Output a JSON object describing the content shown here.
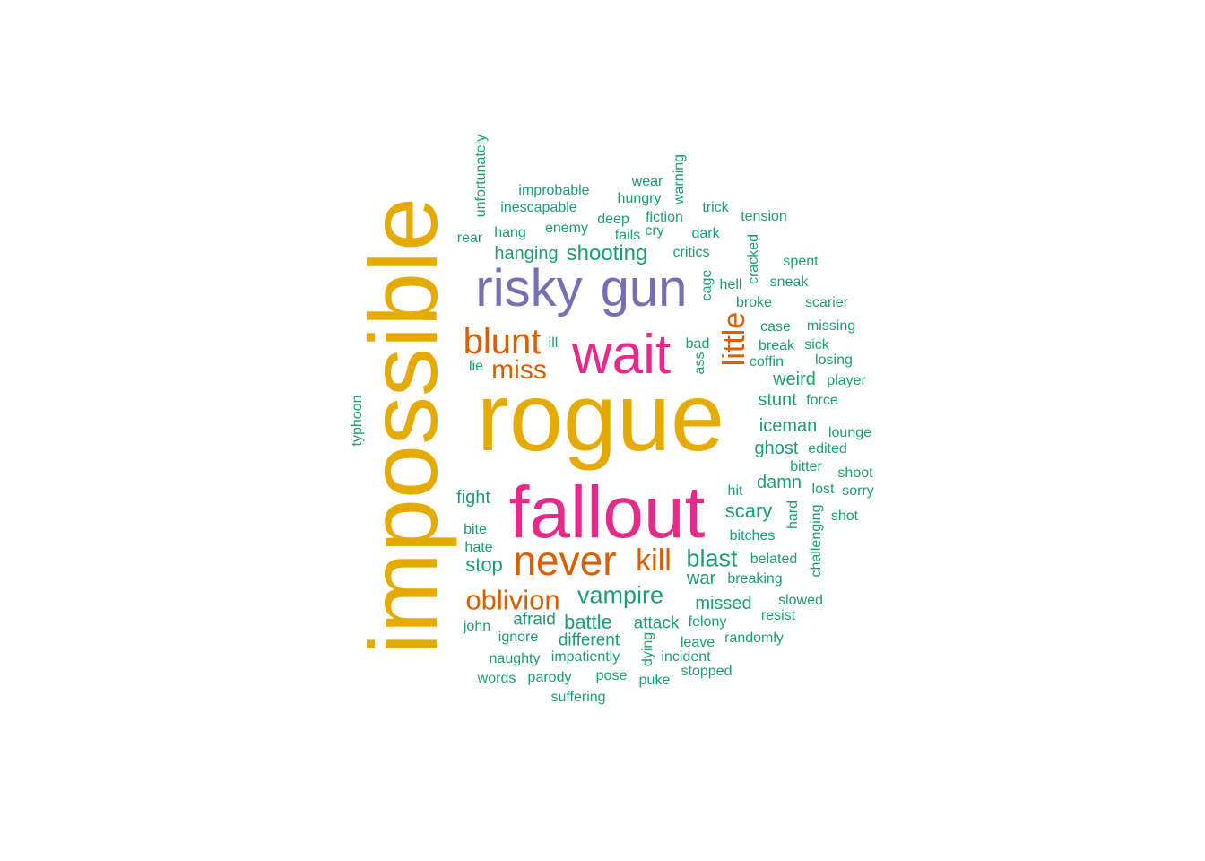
{
  "palette": {
    "gold": "#E6AB02",
    "pink": "#E7298A",
    "purple": "#7570B3",
    "orange": "#D95F02",
    "green": "#1B9E77"
  },
  "words": [
    {
      "text": "rogue",
      "color": "gold"
    },
    {
      "text": "impossible",
      "color": "gold"
    },
    {
      "text": "fallout",
      "color": "pink"
    },
    {
      "text": "wait",
      "color": "pink"
    },
    {
      "text": "risky",
      "color": "purple"
    },
    {
      "text": "gun",
      "color": "purple"
    },
    {
      "text": "never",
      "color": "orange"
    },
    {
      "text": "blunt",
      "color": "orange"
    },
    {
      "text": "miss",
      "color": "orange"
    },
    {
      "text": "kill",
      "color": "orange"
    },
    {
      "text": "oblivion",
      "color": "orange"
    },
    {
      "text": "little",
      "color": "orange"
    },
    {
      "text": "vampire",
      "color": "green"
    },
    {
      "text": "blast",
      "color": "green"
    },
    {
      "text": "shooting",
      "color": "green"
    },
    {
      "text": "hanging",
      "color": "green"
    },
    {
      "text": "scary",
      "color": "green"
    },
    {
      "text": "stop",
      "color": "green"
    },
    {
      "text": "battle",
      "color": "green"
    },
    {
      "text": "fight",
      "color": "green"
    },
    {
      "text": "war",
      "color": "green"
    },
    {
      "text": "missed",
      "color": "green"
    },
    {
      "text": "iceman",
      "color": "green"
    },
    {
      "text": "ghost",
      "color": "green"
    },
    {
      "text": "stunt",
      "color": "green"
    },
    {
      "text": "weird",
      "color": "green"
    },
    {
      "text": "damn",
      "color": "green"
    },
    {
      "text": "afraid",
      "color": "green"
    },
    {
      "text": "attack",
      "color": "green"
    },
    {
      "text": "different",
      "color": "green"
    },
    {
      "text": "improbable",
      "color": "green"
    },
    {
      "text": "inescapable",
      "color": "green"
    },
    {
      "text": "hang",
      "color": "green"
    },
    {
      "text": "enemy",
      "color": "green"
    },
    {
      "text": "deep",
      "color": "green"
    },
    {
      "text": "fiction",
      "color": "green"
    },
    {
      "text": "hungry",
      "color": "green"
    },
    {
      "text": "wear",
      "color": "green"
    },
    {
      "text": "warning",
      "color": "green"
    },
    {
      "text": "trick",
      "color": "green"
    },
    {
      "text": "tension",
      "color": "green"
    },
    {
      "text": "rear",
      "color": "green"
    },
    {
      "text": "fails",
      "color": "green"
    },
    {
      "text": "cry",
      "color": "green"
    },
    {
      "text": "dark",
      "color": "green"
    },
    {
      "text": "critics",
      "color": "green"
    },
    {
      "text": "unfortunately",
      "color": "green"
    },
    {
      "text": "cracked",
      "color": "green"
    },
    {
      "text": "spent",
      "color": "green"
    },
    {
      "text": "cage",
      "color": "green"
    },
    {
      "text": "hell",
      "color": "green"
    },
    {
      "text": "sneak",
      "color": "green"
    },
    {
      "text": "broke",
      "color": "green"
    },
    {
      "text": "scarier",
      "color": "green"
    },
    {
      "text": "case",
      "color": "green"
    },
    {
      "text": "missing",
      "color": "green"
    },
    {
      "text": "ill",
      "color": "green"
    },
    {
      "text": "bad",
      "color": "green"
    },
    {
      "text": "break",
      "color": "green"
    },
    {
      "text": "sick",
      "color": "green"
    },
    {
      "text": "ass",
      "color": "green"
    },
    {
      "text": "coffin",
      "color": "green"
    },
    {
      "text": "losing",
      "color": "green"
    },
    {
      "text": "lie",
      "color": "green"
    },
    {
      "text": "player",
      "color": "green"
    },
    {
      "text": "force",
      "color": "green"
    },
    {
      "text": "typhoon",
      "color": "green"
    },
    {
      "text": "lounge",
      "color": "green"
    },
    {
      "text": "edited",
      "color": "green"
    },
    {
      "text": "bitter",
      "color": "green"
    },
    {
      "text": "shoot",
      "color": "green"
    },
    {
      "text": "hit",
      "color": "green"
    },
    {
      "text": "lost",
      "color": "green"
    },
    {
      "text": "sorry",
      "color": "green"
    },
    {
      "text": "hard",
      "color": "green"
    },
    {
      "text": "challenging",
      "color": "green"
    },
    {
      "text": "shot",
      "color": "green"
    },
    {
      "text": "bite",
      "color": "green"
    },
    {
      "text": "bitches",
      "color": "green"
    },
    {
      "text": "hate",
      "color": "green"
    },
    {
      "text": "belated",
      "color": "green"
    },
    {
      "text": "breaking",
      "color": "green"
    },
    {
      "text": "slowed",
      "color": "green"
    },
    {
      "text": "resist",
      "color": "green"
    },
    {
      "text": "john",
      "color": "green"
    },
    {
      "text": "felony",
      "color": "green"
    },
    {
      "text": "ignore",
      "color": "green"
    },
    {
      "text": "randomly",
      "color": "green"
    },
    {
      "text": "leave",
      "color": "green"
    },
    {
      "text": "dying",
      "color": "green"
    },
    {
      "text": "naughty",
      "color": "green"
    },
    {
      "text": "impatiently",
      "color": "green"
    },
    {
      "text": "incident",
      "color": "green"
    },
    {
      "text": "words",
      "color": "green"
    },
    {
      "text": "parody",
      "color": "green"
    },
    {
      "text": "pose",
      "color": "green"
    },
    {
      "text": "puke",
      "color": "green"
    },
    {
      "text": "stopped",
      "color": "green"
    },
    {
      "text": "suffering",
      "color": "green"
    }
  ]
}
